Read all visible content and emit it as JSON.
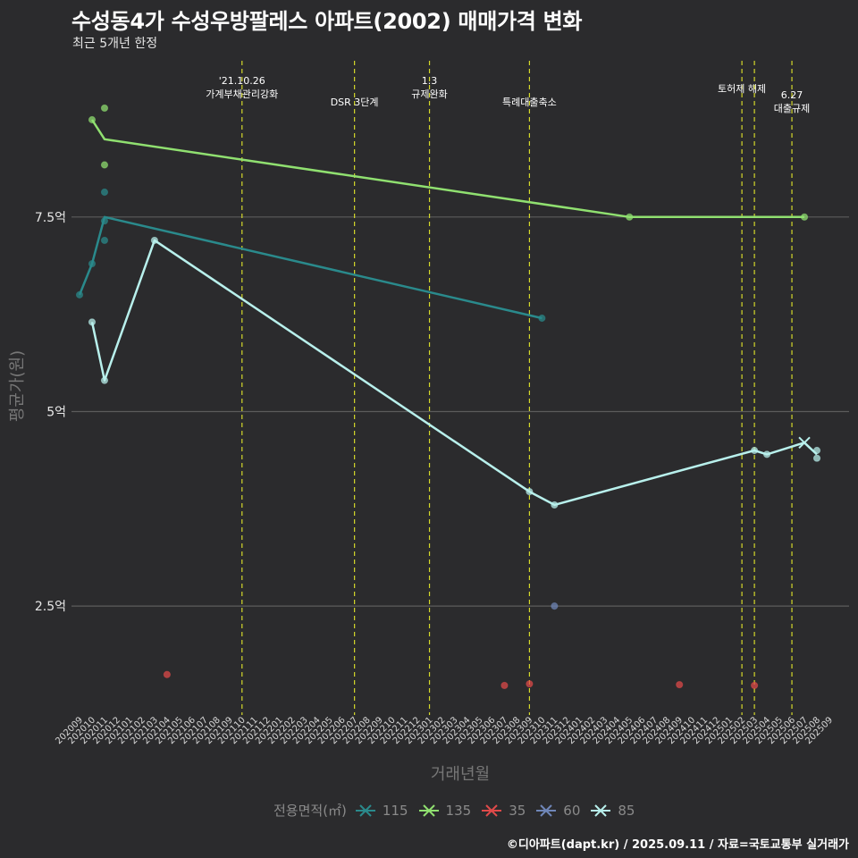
{
  "title": "수성동4가 수성우방팔레스 아파트(2002) 매매가격 변화",
  "subtitle": "최근 5개년 한정",
  "caption": "©디아파트(dapt.kr) / 2025.09.11 / 자료=국토교통부 실거래가",
  "chart_data": {
    "type": "line",
    "title": "수성동4가 수성우방팔레스 아파트(2002) 매매가격 변화",
    "xlabel": "거래년월",
    "ylabel": "평균가(원)",
    "ylim": [
      1.1,
      9.6
    ],
    "y_ticks": [
      {
        "value": 2.5,
        "label": "2.5억"
      },
      {
        "value": 5,
        "label": "5억"
      },
      {
        "value": 7.5,
        "label": "7.5억"
      }
    ],
    "categories": [
      "202009",
      "202010",
      "202011",
      "202012",
      "202101",
      "202102",
      "202103",
      "202104",
      "202105",
      "202106",
      "202107",
      "202108",
      "202109",
      "202110",
      "202111",
      "202112",
      "202201",
      "202202",
      "202203",
      "202204",
      "202205",
      "202206",
      "202207",
      "202208",
      "202209",
      "202210",
      "202211",
      "202212",
      "202301",
      "202302",
      "202303",
      "202304",
      "202305",
      "202306",
      "202307",
      "202308",
      "202309",
      "202310",
      "202311",
      "202312",
      "202401",
      "202402",
      "202403",
      "202404",
      "202405",
      "202406",
      "202407",
      "202408",
      "202409",
      "202410",
      "202411",
      "202412",
      "202501",
      "202502",
      "202503",
      "202504",
      "202505",
      "202506",
      "202507",
      "202508",
      "202509"
    ],
    "legend_title": "전용면적(㎡)",
    "series": [
      {
        "name": "115",
        "color": "#2a8a8c",
        "line": [
          [
            "202009",
            6.5
          ],
          [
            "202010",
            6.9
          ],
          [
            "202011",
            7.5
          ],
          [
            "202310",
            6.2
          ]
        ],
        "points": [
          [
            "202009",
            6.5
          ],
          [
            "202010",
            6.9
          ],
          [
            "202011",
            7.45
          ],
          [
            "202011",
            7.2
          ],
          [
            "202011",
            7.82
          ],
          [
            "202310",
            6.2
          ]
        ]
      },
      {
        "name": "135",
        "color": "#90e070",
        "line": [
          [
            "202010",
            8.75
          ],
          [
            "202011",
            8.5
          ],
          [
            "202405",
            7.5
          ],
          [
            "202507",
            7.5
          ]
        ],
        "points": [
          [
            "202010",
            8.75
          ],
          [
            "202011",
            8.9
          ],
          [
            "202011",
            8.17
          ],
          [
            "202405",
            7.5
          ],
          [
            "202507",
            7.5
          ]
        ]
      },
      {
        "name": "35",
        "color": "#e04a4a",
        "line": [],
        "points": [
          [
            "202104",
            1.62
          ],
          [
            "202307",
            1.48
          ],
          [
            "202309",
            1.5
          ],
          [
            "202409",
            1.49
          ],
          [
            "202503",
            1.48
          ]
        ]
      },
      {
        "name": "60",
        "color": "#6f86b8",
        "line": [],
        "points": [
          [
            "202311",
            2.5
          ]
        ]
      },
      {
        "name": "85",
        "color": "#b8f0ec",
        "line": [
          [
            "202010",
            6.15
          ],
          [
            "202011",
            5.4
          ],
          [
            "202103",
            7.2
          ],
          [
            "202309",
            3.97
          ],
          [
            "202311",
            3.8
          ],
          [
            "202503",
            4.5
          ],
          [
            "202504",
            4.45
          ],
          [
            "202507",
            4.6
          ],
          [
            "202508",
            4.45
          ]
        ],
        "points": [
          [
            "202010",
            6.15
          ],
          [
            "202011",
            5.4
          ],
          [
            "202103",
            7.2
          ],
          [
            "202309",
            3.97
          ],
          [
            "202311",
            3.8
          ],
          [
            "202503",
            4.5
          ],
          [
            "202504",
            4.45
          ],
          [
            "202508",
            4.5
          ],
          [
            "202508",
            4.4
          ]
        ]
      }
    ],
    "events": [
      {
        "month": "202110",
        "lines": [
          "'21.10.26",
          "가계부채관리강화"
        ]
      },
      {
        "month": "202207",
        "lines": [
          "DSR 3단계"
        ]
      },
      {
        "month": "202301",
        "lines": [
          "1.3",
          "규제완화"
        ]
      },
      {
        "month": "202309",
        "lines": [
          "특례대출축소"
        ]
      },
      {
        "month": "202502",
        "lines": [
          "토허제 해제"
        ]
      },
      {
        "month": "202503",
        "lines": [
          ""
        ]
      },
      {
        "month": "202506",
        "lines": [
          "6.27",
          "대출규제"
        ]
      }
    ],
    "grid": "horizontal"
  }
}
